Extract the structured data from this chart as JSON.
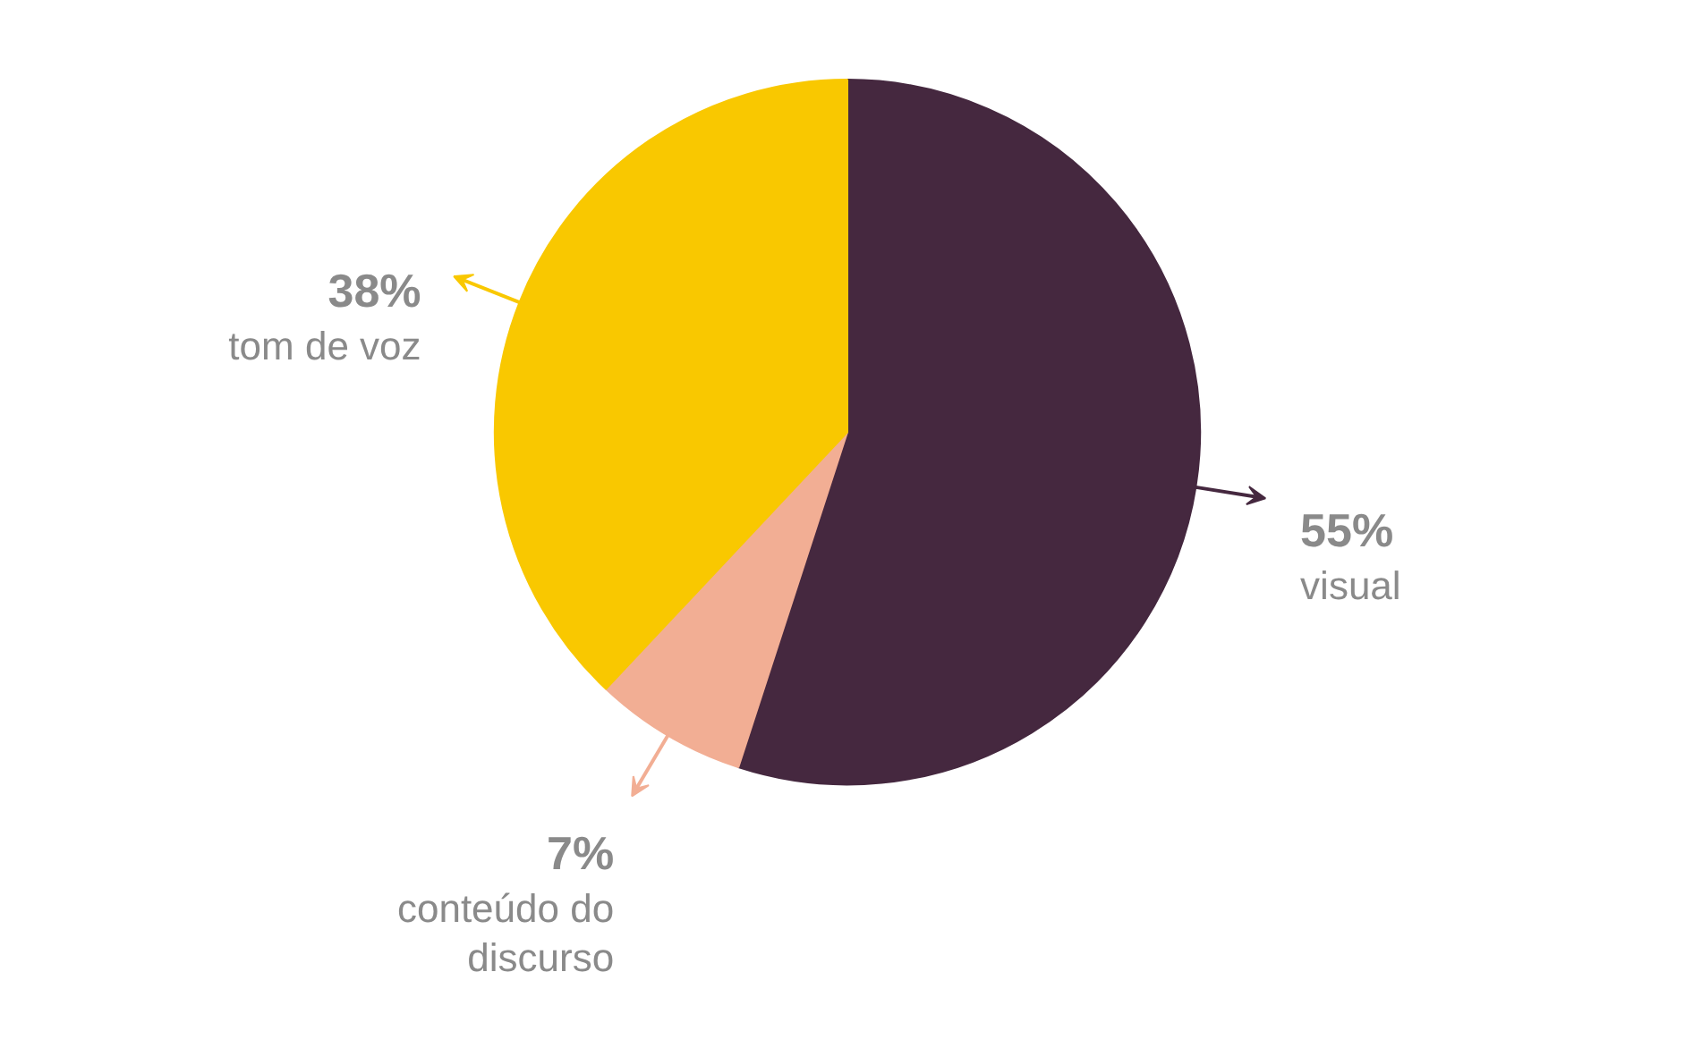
{
  "chart_data": {
    "type": "pie",
    "categories": [
      "visual",
      "conteúdo do discurso",
      "tom de voz"
    ],
    "values": [
      55,
      7,
      38
    ],
    "colors": [
      "#45283f",
      "#f2ae94",
      "#f9c800"
    ],
    "value_labels": [
      "55%",
      "7%",
      "38%"
    ],
    "legend": false
  }
}
